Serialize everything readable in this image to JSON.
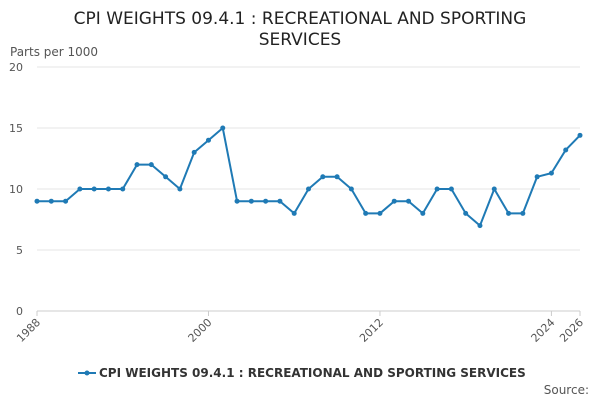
{
  "chart_data": {
    "type": "line",
    "title_lines": [
      "CPI WEIGHTS 09.4.1 : RECREATIONAL AND SPORTING",
      "SERVICES"
    ],
    "ylabel": "Parts per 1000",
    "ylim": [
      0,
      20
    ],
    "yticks": [
      0,
      5,
      10,
      15,
      20
    ],
    "xlim": [
      1988,
      2026
    ],
    "xticks": [
      1988,
      2000,
      2012,
      2024,
      2026
    ],
    "grid": true,
    "legend_position": "bottom",
    "series": [
      {
        "name": "CPI WEIGHTS 09.4.1 : RECREATIONAL AND SPORTING SERVICES",
        "color": "#1f7ab5",
        "x": [
          1988,
          1989,
          1990,
          1991,
          1992,
          1993,
          1994,
          1995,
          1996,
          1997,
          1998,
          1999,
          2000,
          2001,
          2002,
          2003,
          2004,
          2005,
          2006,
          2007,
          2008,
          2009,
          2010,
          2011,
          2012,
          2013,
          2014,
          2015,
          2016,
          2017,
          2018,
          2019,
          2020,
          2021,
          2022,
          2023,
          2024,
          2025,
          2026
        ],
        "values": [
          9,
          9,
          9,
          10,
          10,
          10,
          10,
          12,
          12,
          11,
          10,
          13,
          14,
          15,
          9,
          9,
          9,
          9,
          8,
          10,
          11,
          11,
          10,
          8,
          8,
          9,
          9,
          8,
          10,
          10,
          8,
          7,
          10,
          8,
          8,
          11,
          11.3,
          13.2,
          14.4
        ]
      }
    ],
    "source": "Source:"
  }
}
